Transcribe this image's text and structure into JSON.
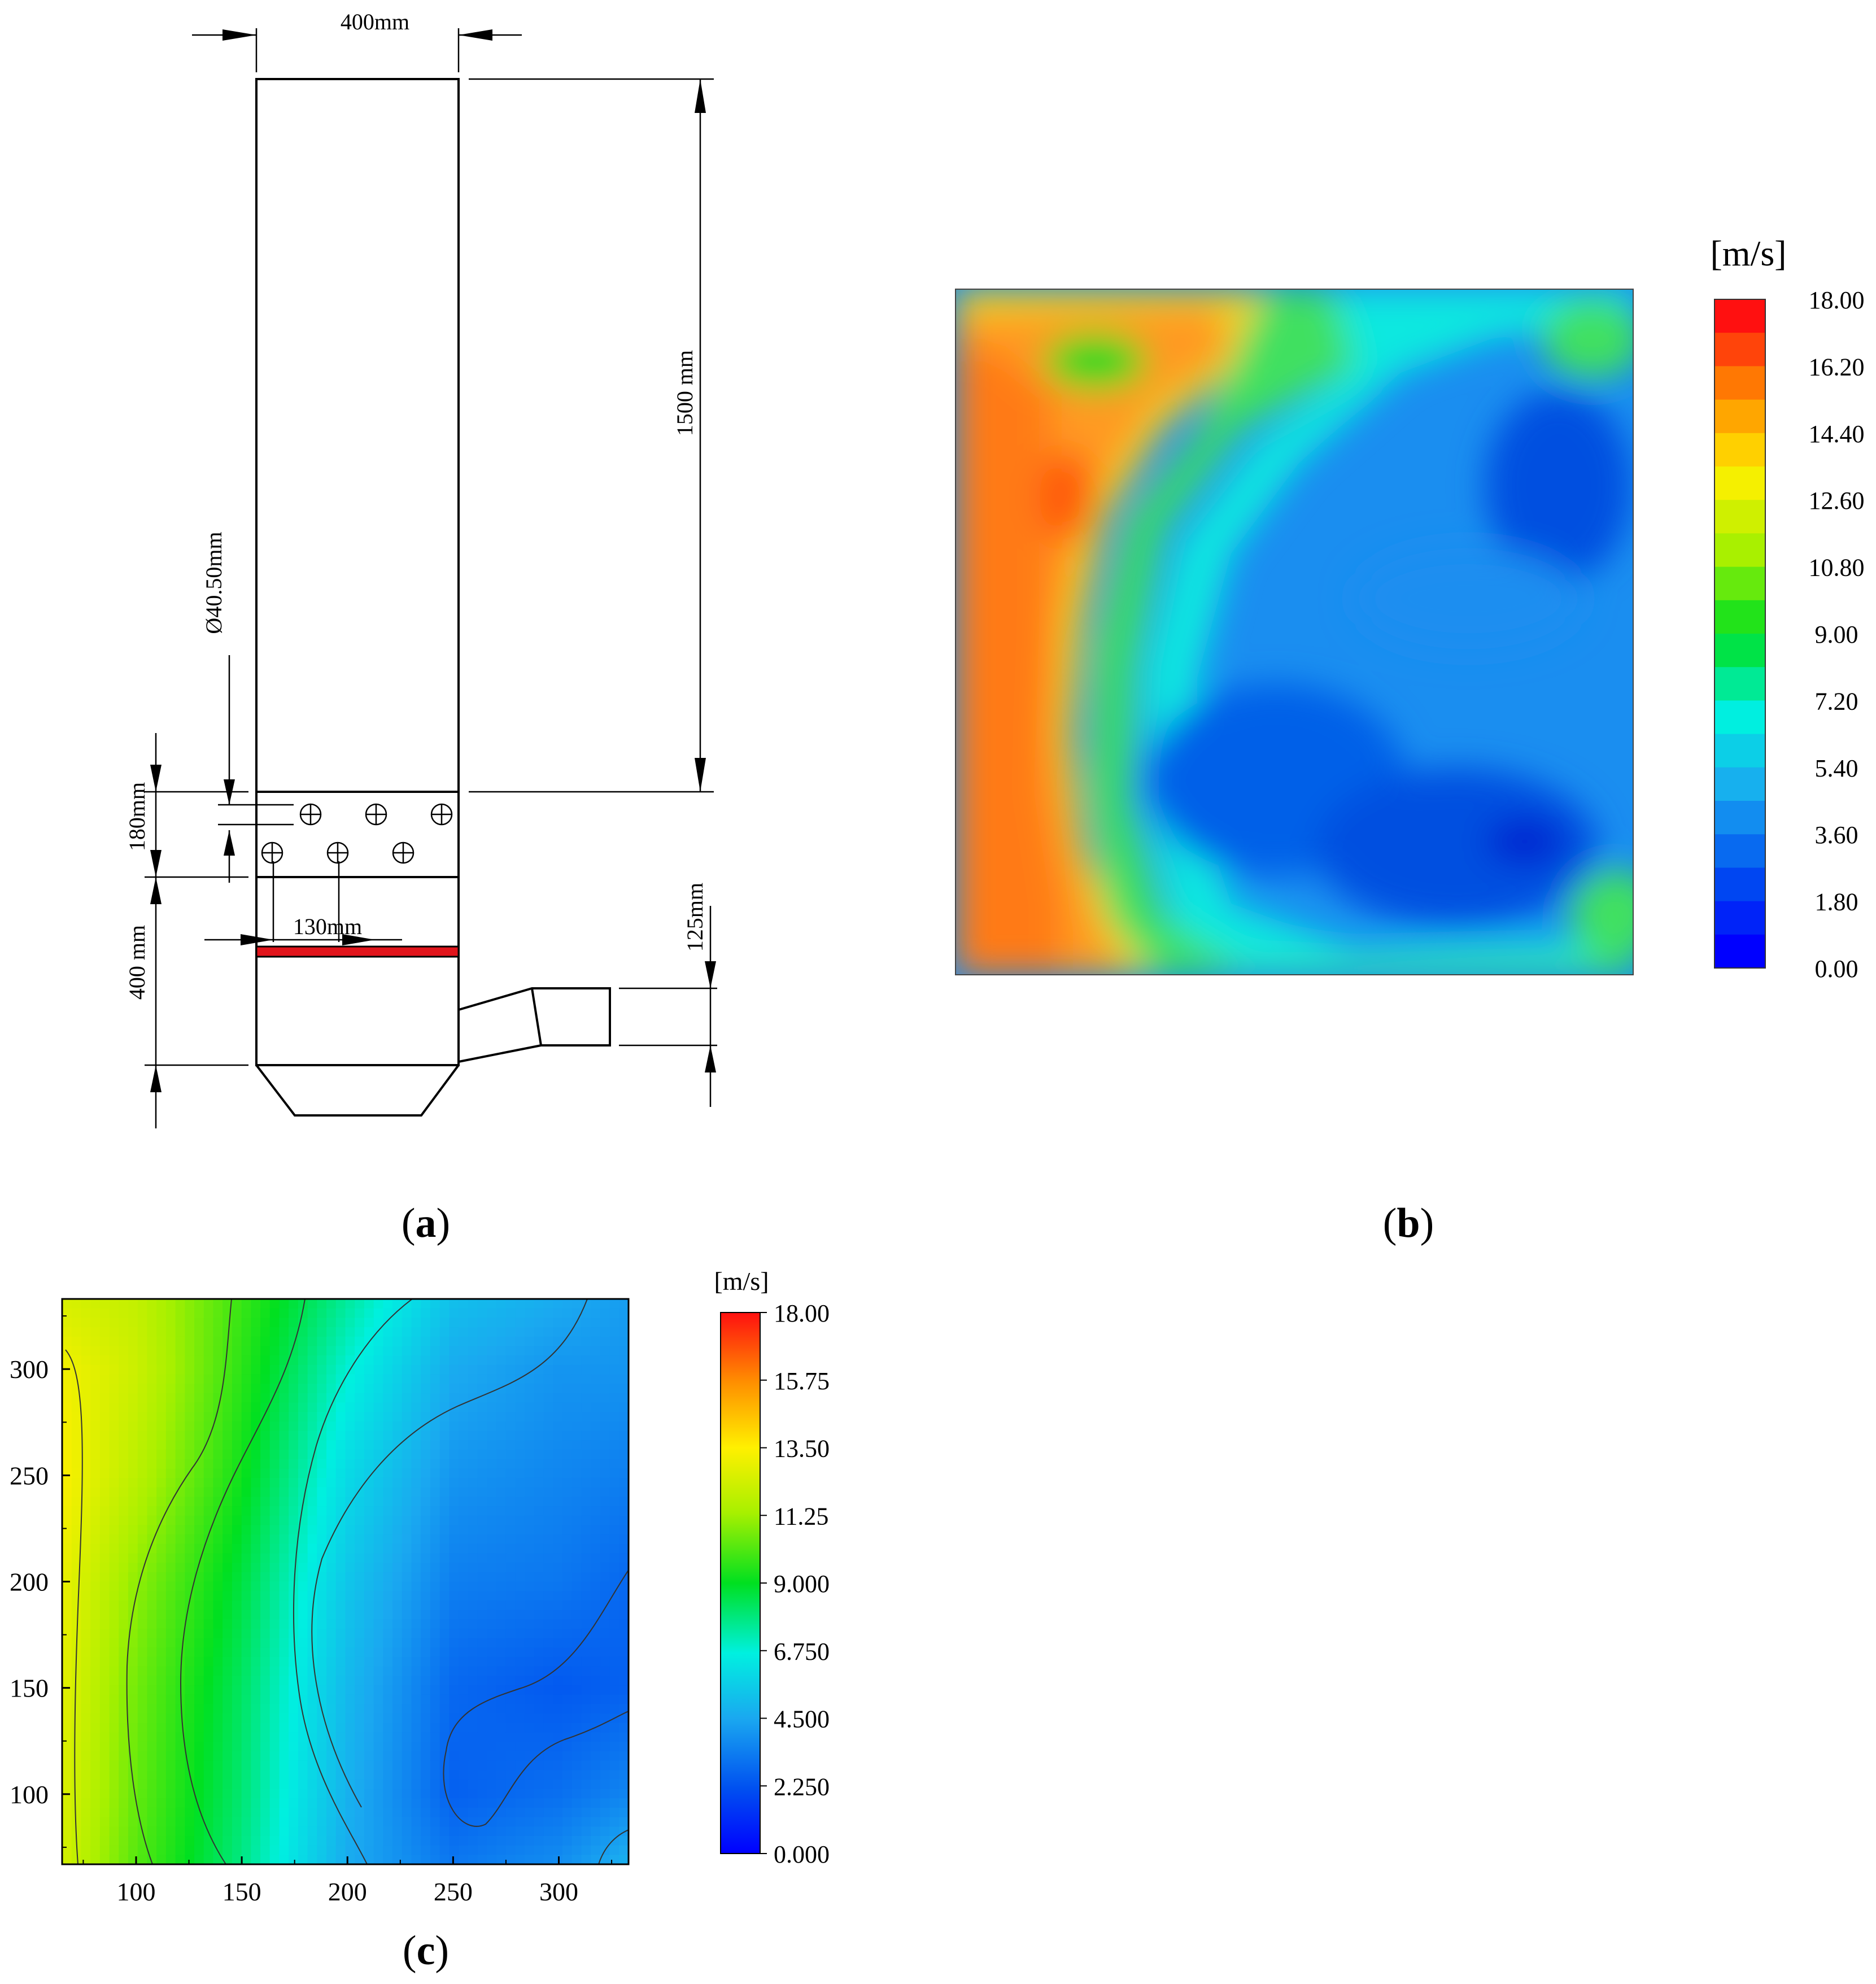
{
  "panels": {
    "a": {
      "label_letter": "a",
      "dim_width_top": "400mm",
      "dim_height_column": "1500 mm",
      "dim_hole_diameter": "Ø40.50mm",
      "dim_hole_zone": "180mm",
      "dim_plate_offset": "130mm",
      "dim_lower_section": "400 mm",
      "dim_outlet": "125mm",
      "accent_plate_color": "#e0141b"
    },
    "b": {
      "label_letter": "b",
      "unit": "[m/s]",
      "colorbar_ticks": [
        "18.00",
        "16.20",
        "14.40",
        "12.60",
        "10.80",
        "9.00",
        "7.20",
        "5.40",
        "3.60",
        "1.80",
        "0.00"
      ],
      "colorbar_levels": 20,
      "vmin": 0,
      "vmax": 18
    },
    "c": {
      "label_letter": "c",
      "unit": "[m/s]",
      "colorbar_ticks": [
        "18.00",
        "15.75",
        "13.50",
        "11.25",
        "9.000",
        "6.750",
        "4.500",
        "2.250",
        "0.000"
      ],
      "vmin": 0,
      "vmax": 18
    }
  },
  "chart_data": {
    "type": "heatmap",
    "title": "",
    "xlabel": "",
    "ylabel": "",
    "x_ticks": [
      "100",
      "150",
      "200",
      "250",
      "300"
    ],
    "y_ticks": [
      "300",
      "250",
      "200",
      "150",
      "100"
    ],
    "xlim": [
      65,
      333
    ],
    "ylim": [
      67,
      333
    ],
    "colorbar_unit": "[m/s]",
    "colorbar_range": [
      0,
      18
    ],
    "x": [
      65,
      100,
      150,
      200,
      250,
      300,
      333
    ],
    "y": [
      333,
      300,
      250,
      200,
      150,
      100,
      67
    ],
    "values": [
      [
        12.5,
        12.0,
        9.8,
        7.5,
        5.2,
        4.6,
        4.2
      ],
      [
        13.2,
        12.2,
        9.6,
        6.8,
        4.6,
        4.0,
        4.0
      ],
      [
        13.4,
        11.8,
        9.2,
        6.0,
        4.0,
        3.6,
        3.4
      ],
      [
        13.0,
        11.0,
        8.6,
        5.4,
        3.4,
        3.2,
        2.8
      ],
      [
        12.8,
        10.6,
        8.2,
        5.0,
        2.8,
        2.4,
        2.6
      ],
      [
        12.6,
        10.4,
        8.0,
        4.8,
        2.6,
        3.0,
        3.6
      ],
      [
        12.4,
        10.2,
        7.8,
        4.6,
        3.2,
        3.8,
        4.8
      ]
    ]
  }
}
